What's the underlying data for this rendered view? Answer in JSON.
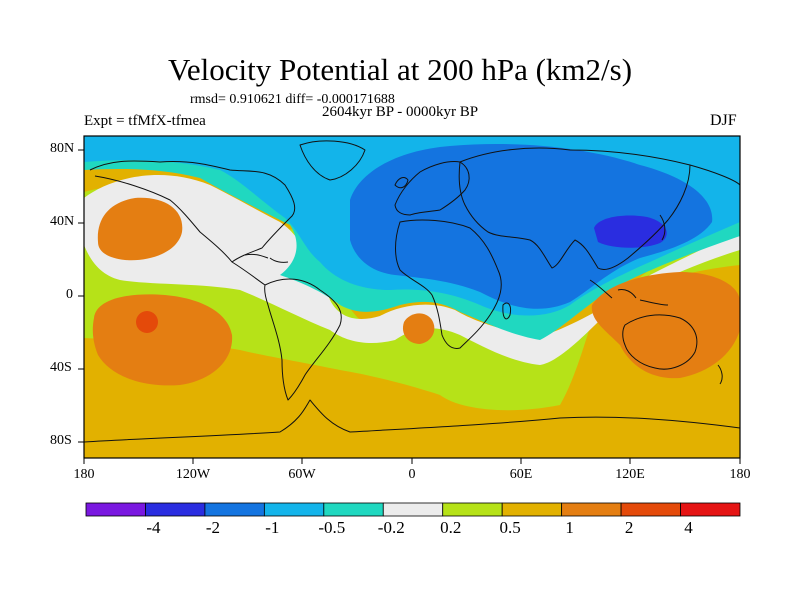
{
  "title": "Velocity Potential at 200 hPa (km2/s)",
  "stats": "rmsd= 0.910621 diff= -0.000171688",
  "period": "2604kyr BP - 0000kyr BP",
  "experiment": "Expt = tfMfX-tfmea",
  "season": "DJF",
  "lat_labels": [
    "80N",
    "40N",
    "0",
    "40S",
    "80S"
  ],
  "lon_labels": [
    "180",
    "120W",
    "60W",
    "0",
    "60E",
    "120E",
    "180"
  ],
  "colorbar": {
    "labels": [
      "-4",
      "-2",
      "-1",
      "-0.5",
      "-0.2",
      "0.2",
      "0.5",
      "1",
      "2",
      "4"
    ],
    "colors": [
      "#7a18e0",
      "#2a2de0",
      "#1474e0",
      "#13b4ea",
      "#20d8c0",
      "#ececec",
      "#b6e218",
      "#e2b100",
      "#e47e12",
      "#e44a0a",
      "#e51414"
    ]
  },
  "field_colors": {
    "neg_0_5_to_0_2": "#20d8c0",
    "neg_1_to_0_5": "#13b4ea",
    "neg_2_to_1": "#1474e0",
    "neg_4_to_2": "#2a2de0",
    "neg_0_2_to_0_2": "#ececec",
    "pos_0_2_to_0_5": "#b6e218",
    "pos_0_5_to_1": "#e2b100",
    "pos_1_to_2": "#e47e12",
    "pos_2_to_4": "#e44a0a"
  }
}
